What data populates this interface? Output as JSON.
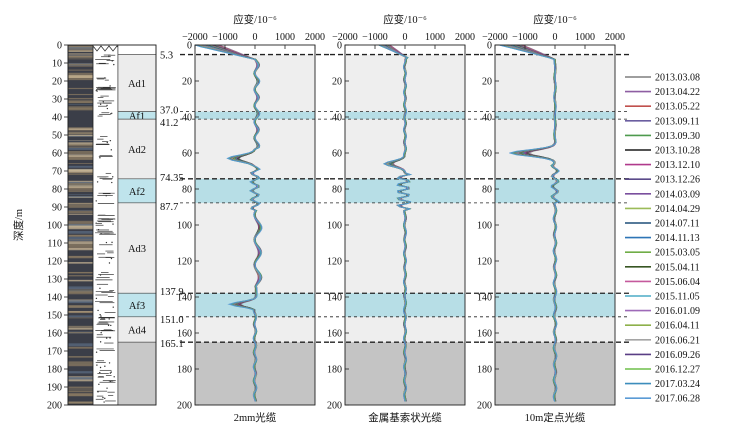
{
  "chart_data": {
    "type": "line",
    "ylabel": "深度/m",
    "xlabel": "应变/10⁻⁶",
    "ylim": [
      0,
      200
    ],
    "xlim": [
      -2000,
      2000
    ],
    "y_ticks": [
      0,
      10,
      20,
      30,
      40,
      50,
      60,
      70,
      80,
      90,
      100,
      110,
      120,
      130,
      140,
      150,
      160,
      170,
      180,
      190,
      200
    ],
    "panel_y_ticks": [
      0,
      20,
      40,
      60,
      80,
      100,
      120,
      140,
      160,
      180,
      200
    ],
    "x_ticks": [
      -2000,
      -1000,
      0,
      1000,
      2000
    ],
    "layers": [
      {
        "name": "Ad1",
        "top": 5.3,
        "bottom": 37.0
      },
      {
        "name": "Af1",
        "top": 37.0,
        "bottom": 41.2
      },
      {
        "name": "Ad2",
        "top": 41.2,
        "bottom": 74.35
      },
      {
        "name": "Af2",
        "top": 74.35,
        "bottom": 87.7
      },
      {
        "name": "Ad3",
        "top": 87.7,
        "bottom": 137.9
      },
      {
        "name": "Af3",
        "top": 137.9,
        "bottom": 151.0
      },
      {
        "name": "Ad4",
        "top": 151.0,
        "bottom": 165.1
      }
    ],
    "boundary_labels": [
      "5.3",
      "37.0",
      "41.2",
      "74.35",
      "87.7",
      "137.9",
      "151.0",
      "165.1"
    ],
    "boundaries": [
      5.3,
      37.0,
      41.2,
      74.35,
      87.7,
      137.9,
      151.0,
      165.1
    ],
    "panels": [
      {
        "name": "2mm光缆"
      },
      {
        "name": "金属基索状光缆"
      },
      {
        "name": "10m定点光缆"
      }
    ],
    "series": [
      {
        "name": "2013.03.08",
        "color": "#7f7f7f"
      },
      {
        "name": "2013.04.22",
        "color": "#8e5ea2"
      },
      {
        "name": "2013.05.22",
        "color": "#c0504d"
      },
      {
        "name": "2013.09.11",
        "color": "#6b5ea0"
      },
      {
        "name": "2013.09.30",
        "color": "#4e9a4e"
      },
      {
        "name": "2013.10.28",
        "color": "#1a1a1a"
      },
      {
        "name": "2013.12.10",
        "color": "#b03a8c"
      },
      {
        "name": "2013.12.26",
        "color": "#5b4a8a"
      },
      {
        "name": "2014.03.09",
        "color": "#7a4f9e"
      },
      {
        "name": "2014.04.29",
        "color": "#9bbb59"
      },
      {
        "name": "2014.07.11",
        "color": "#1f4e79"
      },
      {
        "name": "2014.11.13",
        "color": "#2e75b6"
      },
      {
        "name": "2015.03.05",
        "color": "#70ad47"
      },
      {
        "name": "2015.04.11",
        "color": "#375623"
      },
      {
        "name": "2015.06.04",
        "color": "#c55a9d"
      },
      {
        "name": "2015.11.05",
        "color": "#4bacc6"
      },
      {
        "name": "2016.01.09",
        "color": "#9e6ab8"
      },
      {
        "name": "2016.04.11",
        "color": "#8db04a"
      },
      {
        "name": "2016.06.21",
        "color": "#a5a5a5"
      },
      {
        "name": "2016.09.26",
        "color": "#5a3e85"
      },
      {
        "name": "2016.12.27",
        "color": "#6fbf4a"
      },
      {
        "name": "2017.03.24",
        "color": "#3c8dbc"
      },
      {
        "name": "2017.06.28",
        "color": "#5b9bd5"
      }
    ]
  }
}
